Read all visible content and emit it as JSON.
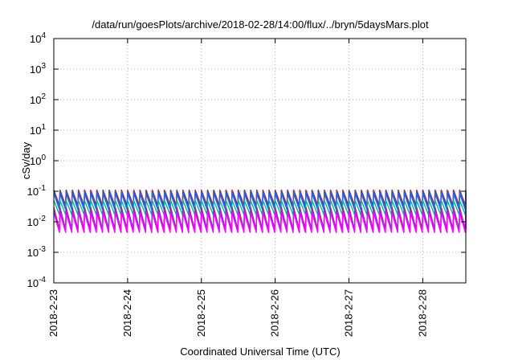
{
  "chart_data": {
    "type": "line",
    "title": "/data/run/goesPlots/archive/2018-02-28/14:00/flux/../bryn/5daysMars.plot",
    "xlabel": "Coordinated Universal Time (UTC)",
    "ylabel": "cSv/day",
    "y_scale": "log",
    "ylim": [
      0.0001,
      10000
    ],
    "y_ticks": [
      {
        "value": 0.0001,
        "base": "10",
        "exp": "-4"
      },
      {
        "value": 0.001,
        "base": "10",
        "exp": "-3"
      },
      {
        "value": 0.01,
        "base": "10",
        "exp": "-2"
      },
      {
        "value": 0.1,
        "base": "10",
        "exp": "-1"
      },
      {
        "value": 1,
        "base": "10",
        "exp": "0"
      },
      {
        "value": 10,
        "base": "10",
        "exp": "1"
      },
      {
        "value": 100,
        "base": "10",
        "exp": "2"
      },
      {
        "value": 1000,
        "base": "10",
        "exp": "3"
      },
      {
        "value": 10000,
        "base": "10",
        "exp": "4"
      }
    ],
    "xlim": [
      "2018-02-23T00:00",
      "2018-02-28T14:00"
    ],
    "x_ticks": [
      {
        "value": "2018-02-23T00:00",
        "label": "2018-2-23"
      },
      {
        "value": "2018-02-24T00:00",
        "label": "2018-2-24"
      },
      {
        "value": "2018-02-25T00:00",
        "label": "2018-2-25"
      },
      {
        "value": "2018-02-26T00:00",
        "label": "2018-2-26"
      },
      {
        "value": "2018-02-27T00:00",
        "label": "2018-2-27"
      },
      {
        "value": "2018-02-28T00:00",
        "label": "2018-2-28"
      }
    ],
    "grid": true,
    "legend": "none",
    "pattern": {
      "shape": "sawtooth",
      "period_hours": 2.0
    },
    "series": [
      {
        "color": "#e41a1c",
        "peak": 0.11,
        "trough": 0.035
      },
      {
        "color": "#0066cc",
        "peak": 0.1,
        "trough": 0.03
      },
      {
        "color": "#3b5bdb",
        "peak": 0.085,
        "trough": 0.025
      },
      {
        "color": "#00b3b3",
        "peak": 0.05,
        "trough": 0.017
      },
      {
        "color": "#9e2a5e",
        "peak": 0.03,
        "trough": 0.0055
      },
      {
        "color": "#8a2be2",
        "peak": 0.024,
        "trough": 0.006
      },
      {
        "color": "#ff00ff",
        "peak": 0.02,
        "trough": 0.0045
      }
    ]
  }
}
